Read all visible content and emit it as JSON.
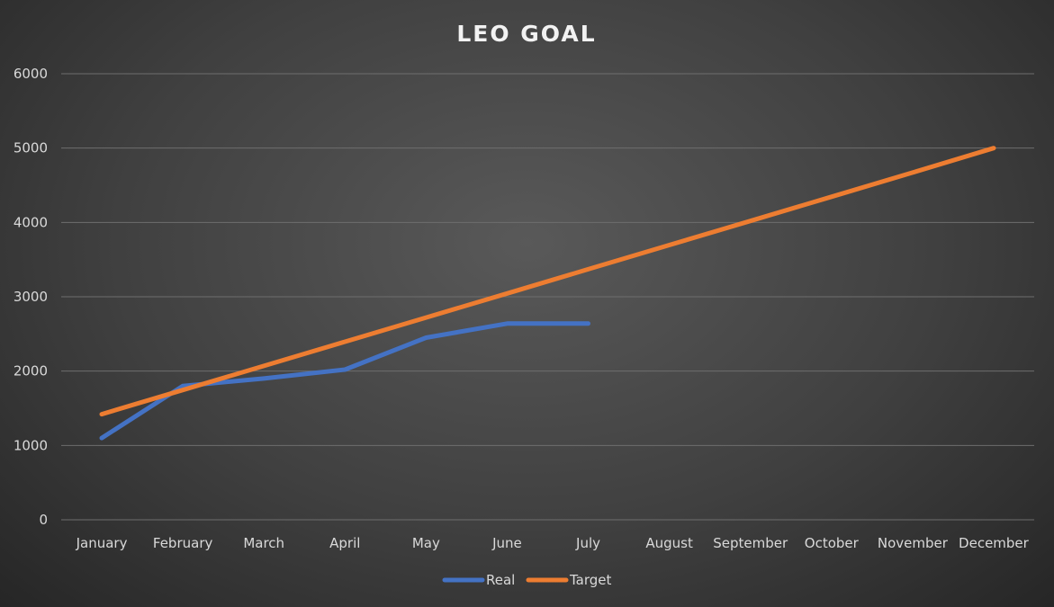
{
  "chart_data": {
    "type": "line",
    "title": "LEO GOAL",
    "xlabel": "",
    "ylabel": "",
    "categories": [
      "January",
      "February",
      "March",
      "April",
      "May",
      "June",
      "July",
      "August",
      "September",
      "October",
      "November",
      "December"
    ],
    "ylim": [
      0,
      6000
    ],
    "yticks": [
      0,
      1000,
      2000,
      3000,
      4000,
      5000,
      6000
    ],
    "grid": true,
    "legend": "bottom",
    "series": [
      {
        "name": "Real",
        "color": "#4472c4",
        "values": [
          1100,
          1800,
          1900,
          2020,
          2450,
          2640,
          2640,
          null,
          null,
          null,
          null,
          null
        ]
      },
      {
        "name": "Target",
        "color": "#ed7d31",
        "values": [
          1420,
          1745,
          2070,
          2395,
          2720,
          3045,
          3370,
          3695,
          4020,
          4345,
          4670,
          5000
        ]
      }
    ]
  }
}
